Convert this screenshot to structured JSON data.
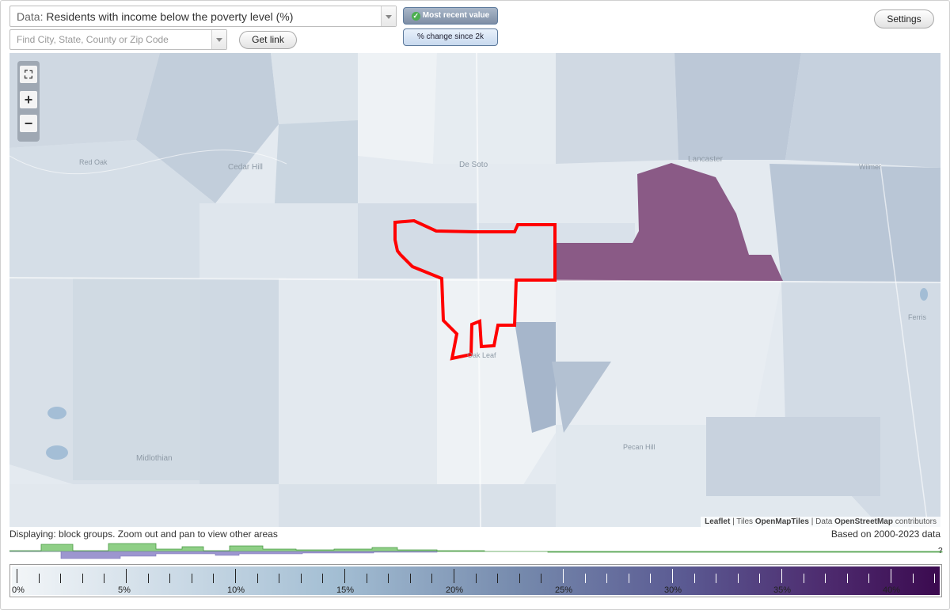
{
  "controls": {
    "data_prefix": "Data:",
    "data_value": "Residents with income below the poverty level (%)",
    "search_placeholder": "Find City, State, County or Zip Code",
    "get_link": "Get link",
    "most_recent": "Most recent value",
    "percent_change": "% change since 2k",
    "settings": "Settings"
  },
  "map": {
    "places": {
      "cedar_hill": "Cedar Hill",
      "de_soto": "De Soto",
      "lancaster": "Lancaster",
      "wilmer": "Wilmer",
      "ferris": "Ferris",
      "midlothian": "Midlothian",
      "pecan_hill": "Pecan Hill",
      "oak_leaf": "Oak Leaf",
      "red_oak": "Red Oak"
    },
    "attribution": {
      "leaflet": "Leaflet",
      "sep1": " | Tiles ",
      "tiles": "OpenMapTiles",
      "sep2": " | Data ",
      "data": "OpenStreetMap",
      "tail": " contributors"
    },
    "zoom": {
      "fit": "⛶",
      "in": "+",
      "out": "−"
    },
    "highlight_color": "#ff0000",
    "high_value_color": "#8a5a86"
  },
  "status": {
    "displaying": "Displaying: block groups. Zoom out and pan to view other areas",
    "based_on": "Based on 2000-2023 data",
    "unknown": "?"
  },
  "legend": {
    "labels": [
      "0%",
      "5%",
      "10%",
      "15%",
      "20%",
      "25%",
      "30%",
      "35%",
      "40%"
    ],
    "colors": {
      "low": "#f3f6f8",
      "mid": "#7589ac",
      "high": "#3b0a4f"
    }
  }
}
